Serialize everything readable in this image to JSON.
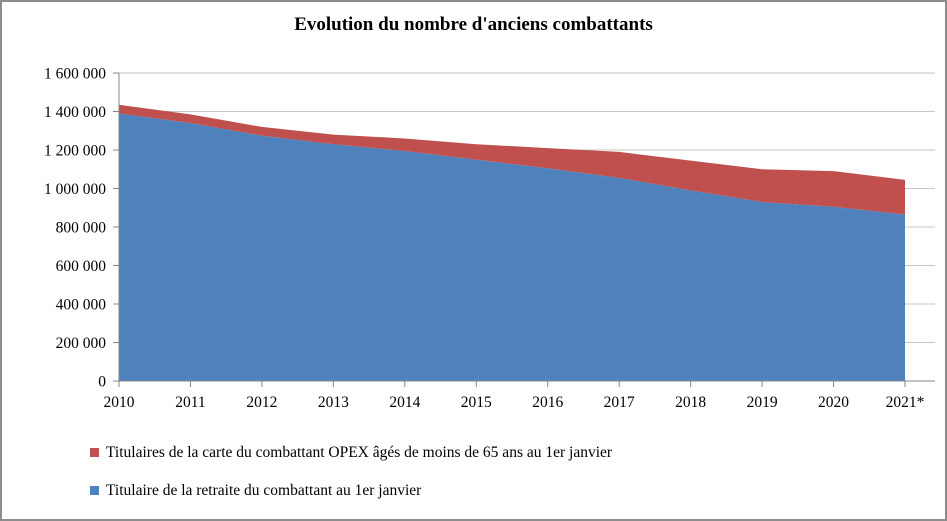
{
  "window": {
    "background": "#FFFFFF",
    "border_color": "#8C8C8C"
  },
  "chart_data": {
    "type": "area",
    "stacked": true,
    "title": "Evolution du nombre d'anciens combattants",
    "categories": [
      "2010",
      "2011",
      "2012",
      "2013",
      "2014",
      "2015",
      "2016",
      "2017",
      "2018",
      "2019",
      "2020",
      "2021*"
    ],
    "series": [
      {
        "name": "Titulaire de la retraite du combattant au 1er janvier",
        "color": "#4F81BD",
        "values": [
          1390000,
          1340000,
          1275000,
          1230000,
          1195000,
          1150000,
          1105000,
          1055000,
          990000,
          930000,
          905000,
          865000
        ]
      },
      {
        "name": "Titulaires de la carte du combattant OPEX âgés de moins de 65 ans au 1er janvier",
        "color": "#C0504D",
        "values": [
          45000,
          45000,
          45000,
          50000,
          65000,
          80000,
          105000,
          135000,
          155000,
          170000,
          185000,
          180000
        ]
      }
    ],
    "ylim": [
      0,
      1600000
    ],
    "y_ticks": [
      0,
      200000,
      400000,
      600000,
      800000,
      1000000,
      1200000,
      1400000,
      1600000
    ],
    "y_tick_labels": [
      "0",
      "200 000",
      "400 000",
      "600 000",
      "800 000",
      "1 000 000",
      "1 200 000",
      "1 400 000",
      "1 600 000"
    ],
    "grid": true,
    "gridline_color": "#C6C6C6",
    "axis_color": "#868686",
    "text_color": "#000000",
    "legend_position": "bottom-left"
  },
  "legend": {
    "items": [
      {
        "label": "Titulaires de la carte du combattant OPEX âgés de moins de 65 ans au 1er janvier",
        "color": "#C0504D"
      },
      {
        "label": "Titulaire de la retraite du combattant au 1er janvier",
        "color": "#4F81BD"
      }
    ]
  }
}
